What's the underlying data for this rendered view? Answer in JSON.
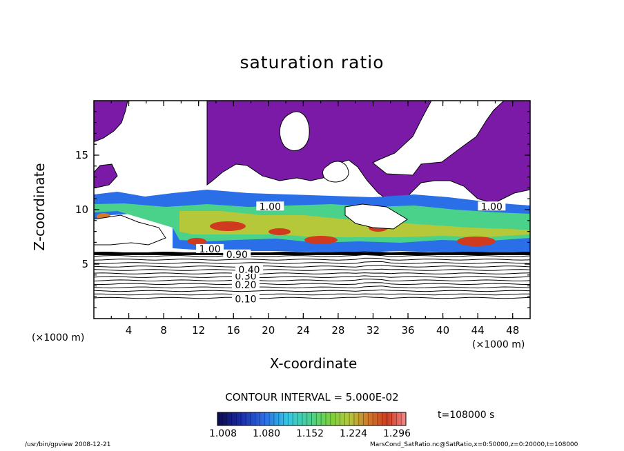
{
  "title": "saturation ratio",
  "axis": {
    "xlabel": "X-coordinate",
    "ylabel": "Z-coordinate",
    "x_unit": "(×1000 m)",
    "x_unit_right": "(×1000 m)"
  },
  "contour_interval": "CONTOUR INTERVAL = 5.000E-02",
  "time_label": "t=108000 s",
  "footer": {
    "left": "/usr/bin/gpview   2008-12-21",
    "right": "MarsCond_SatRatio.nc@SatRatio,x=0:50000,z=0:20000,t=108000"
  },
  "colors": {
    "supersaturated_fill": "#7a1aa6",
    "colorbar": [
      "#0a0a4a",
      "#1a2aa8",
      "#2a6ee8",
      "#32c8e6",
      "#4ad28a",
      "#7ad23a",
      "#b4c83a",
      "#d27a2a",
      "#d03a1e",
      "#f08a8a"
    ]
  },
  "chart_data": {
    "type": "contour",
    "title": "saturation ratio",
    "xlabel": "X-coordinate",
    "ylabel": "Z-coordinate",
    "x_unit": "×1000 m",
    "xlim": [
      0,
      50
    ],
    "ylim": [
      0,
      20
    ],
    "x_ticks": [
      4,
      8,
      12,
      16,
      20,
      24,
      28,
      32,
      36,
      40,
      44,
      48
    ],
    "y_ticks": [
      5,
      10,
      15
    ],
    "contour_interval": 0.05,
    "contour_labels": [
      {
        "value": "0.10",
        "x": 17.4,
        "z": 1.8
      },
      {
        "value": "0.20",
        "x": 17.4,
        "z": 3.1
      },
      {
        "value": "0.30",
        "x": 17.4,
        "z": 3.9
      },
      {
        "value": "0.40",
        "x": 17.8,
        "z": 4.5
      },
      {
        "value": "0.90",
        "x": 16.4,
        "z": 5.9
      },
      {
        "value": "1.00",
        "x": 13.3,
        "z": 6.4
      },
      {
        "value": "1.00",
        "x": 20.2,
        "z": 10.3
      },
      {
        "value": "1.00",
        "x": 45.6,
        "z": 10.3
      }
    ],
    "colorbar": {
      "ticks": [
        "1.008",
        "1.080",
        "1.152",
        "1.224",
        "1.296"
      ]
    },
    "time": "t=108000 s"
  }
}
